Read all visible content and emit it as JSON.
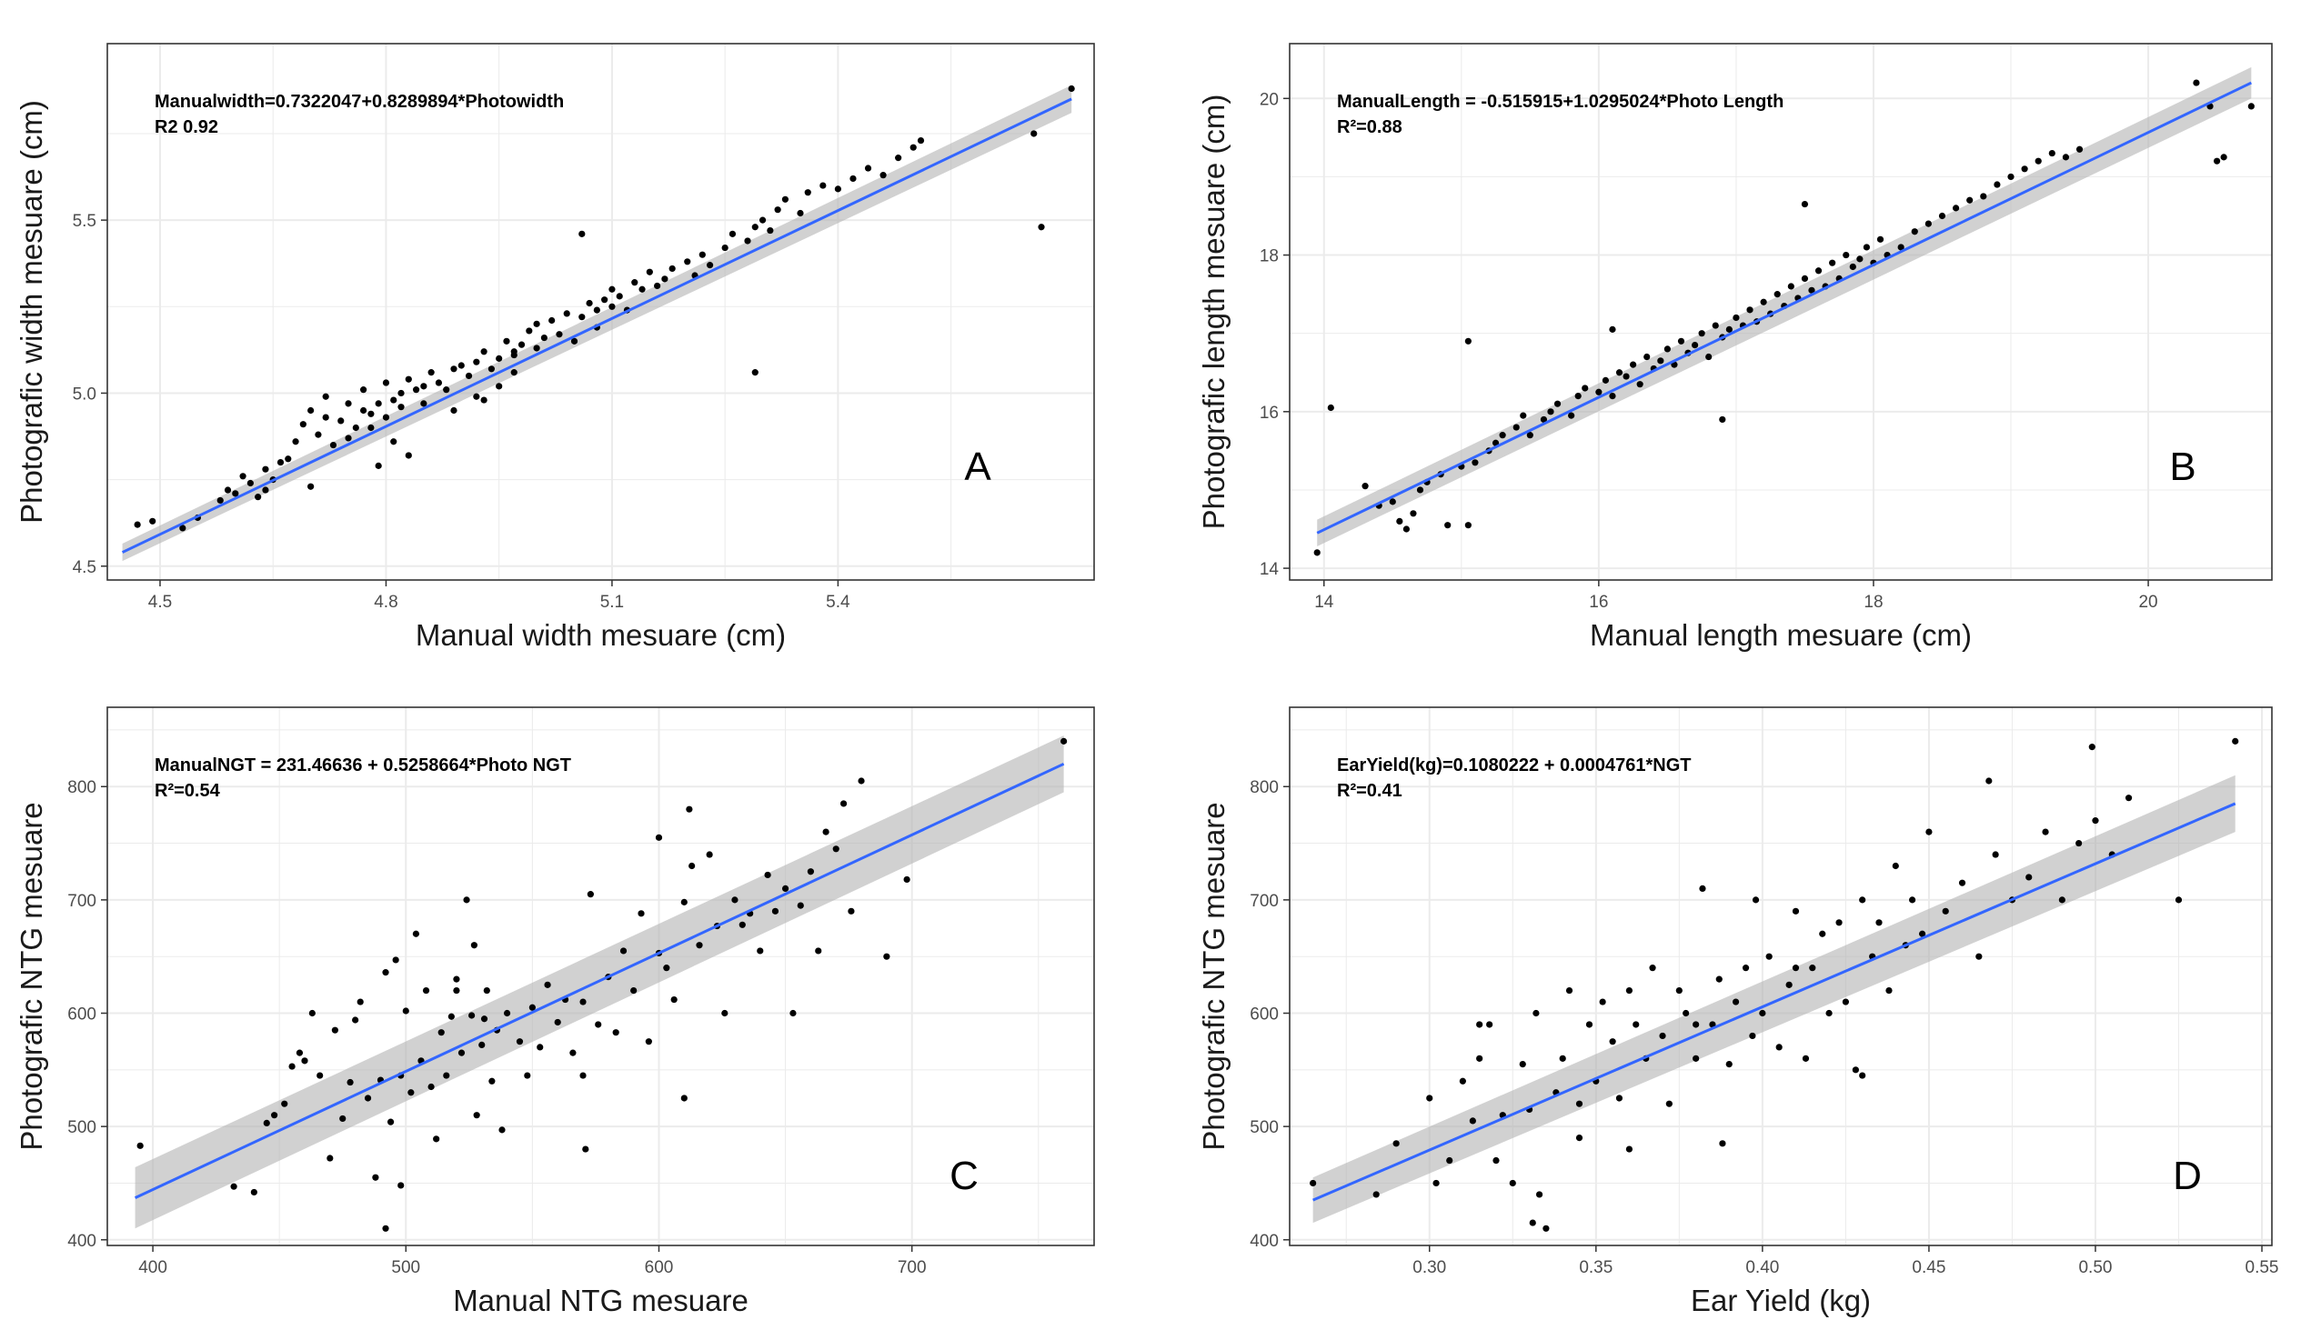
{
  "figure": {
    "background_color": "#ffffff",
    "panel_border_color": "#333333",
    "grid_color": "#ebebeb",
    "point_color": "#000000",
    "fit_line_color": "#3366ff",
    "ci_band_color": "#b3b3b3"
  },
  "chart_data": [
    {
      "type": "scatter",
      "panel_label": "A",
      "equation": "Manualwidth=0.7322047+0.8289894*Photowidth",
      "r2_text": "R2 0.92",
      "xlabel": "Manual width mesuare (cm)",
      "ylabel": "Photografic width mesuare (cm)",
      "xlim": [
        4.43,
        5.74
      ],
      "ylim": [
        4.46,
        6.01
      ],
      "xticks": [
        4.5,
        4.8,
        5.1,
        5.4
      ],
      "xtick_labels": [
        "4.5",
        "4.8",
        "5.1",
        "5.4"
      ],
      "yticks": [
        4.5,
        5.0,
        5.5
      ],
      "ytick_labels": [
        "4.5",
        "5.0",
        "5.5"
      ],
      "grid": true,
      "fit": {
        "x": [
          4.45,
          5.71
        ],
        "y": [
          4.54,
          5.85
        ],
        "ci_half_width": [
          0.025,
          0.04
        ]
      },
      "x": [
        4.47,
        4.49,
        4.53,
        4.55,
        4.58,
        4.59,
        4.6,
        4.61,
        4.62,
        4.63,
        4.64,
        4.64,
        4.65,
        4.66,
        4.67,
        4.68,
        4.69,
        4.7,
        4.71,
        4.72,
        4.72,
        4.73,
        4.74,
        4.75,
        4.75,
        4.76,
        4.77,
        4.77,
        4.78,
        4.78,
        4.79,
        4.8,
        4.8,
        4.81,
        4.82,
        4.82,
        4.83,
        4.84,
        4.85,
        4.85,
        4.86,
        4.87,
        4.88,
        4.89,
        4.89,
        4.9,
        4.91,
        4.92,
        4.92,
        4.93,
        4.94,
        4.95,
        4.95,
        4.96,
        4.97,
        4.97,
        4.98,
        4.99,
        5.0,
        5.0,
        5.01,
        5.02,
        5.03,
        5.04,
        5.05,
        5.06,
        5.07,
        5.08,
        5.08,
        5.09,
        5.1,
        5.1,
        5.11,
        5.12,
        5.13,
        5.14,
        5.15,
        5.16,
        5.17,
        5.18,
        5.2,
        5.21,
        5.22,
        5.23,
        5.25,
        5.26,
        5.28,
        5.29,
        5.3,
        5.31,
        5.32,
        5.33,
        5.35,
        5.36,
        5.38,
        5.4,
        5.42,
        5.44,
        5.46,
        5.48,
        5.5,
        5.51,
        5.66,
        5.67,
        5.71,
        4.81,
        4.79,
        4.83,
        4.7,
        5.29,
        5.06,
        4.93,
        4.97
      ],
      "y": [
        4.62,
        4.63,
        4.61,
        4.64,
        4.69,
        4.72,
        4.71,
        4.76,
        4.74,
        4.7,
        4.78,
        4.72,
        4.75,
        4.8,
        4.81,
        4.86,
        4.91,
        4.95,
        4.88,
        4.93,
        4.99,
        4.85,
        4.92,
        4.97,
        4.87,
        4.9,
        4.95,
        5.01,
        4.94,
        4.9,
        4.97,
        4.93,
        5.03,
        4.98,
        5.0,
        4.96,
        5.04,
        5.01,
        5.02,
        4.97,
        5.06,
        5.03,
        5.01,
        5.07,
        4.95,
        5.08,
        5.05,
        5.09,
        4.99,
        5.12,
        5.07,
        5.1,
        5.02,
        5.15,
        5.12,
        5.06,
        5.14,
        5.18,
        5.13,
        5.2,
        5.16,
        5.21,
        5.17,
        5.23,
        5.15,
        5.22,
        5.26,
        5.24,
        5.19,
        5.27,
        5.25,
        5.3,
        5.28,
        5.24,
        5.32,
        5.3,
        5.35,
        5.31,
        5.33,
        5.36,
        5.38,
        5.34,
        5.4,
        5.37,
        5.42,
        5.46,
        5.44,
        5.48,
        5.5,
        5.47,
        5.53,
        5.56,
        5.52,
        5.58,
        5.6,
        5.59,
        5.62,
        5.65,
        5.63,
        5.68,
        5.71,
        5.73,
        5.75,
        5.48,
        5.88,
        4.86,
        4.79,
        4.82,
        4.73,
        5.06,
        5.46,
        4.98,
        5.11
      ]
    },
    {
      "type": "scatter",
      "panel_label": "B",
      "equation": "ManualLength = -0.515915+1.0295024*Photo Length",
      "r2_text": "R²=0.88",
      "xlabel": "Manual length mesuare (cm)",
      "ylabel": "Photografic length mesuare (cm)",
      "xlim": [
        13.75,
        20.9
      ],
      "ylim": [
        13.85,
        20.7
      ],
      "xticks": [
        14,
        16,
        18,
        20
      ],
      "xtick_labels": [
        "14",
        "16",
        "18",
        "20"
      ],
      "yticks": [
        14,
        16,
        18,
        20
      ],
      "ytick_labels": [
        "14",
        "16",
        "18",
        "20"
      ],
      "grid": true,
      "fit": {
        "x": [
          13.95,
          20.75
        ],
        "y": [
          14.45,
          20.2
        ],
        "ci_half_width": [
          0.17,
          0.2
        ]
      },
      "x": [
        13.95,
        14.05,
        14.3,
        14.4,
        14.5,
        14.55,
        14.6,
        14.7,
        14.75,
        14.85,
        14.9,
        15.0,
        15.05,
        15.1,
        15.2,
        15.25,
        15.3,
        15.4,
        15.45,
        15.5,
        15.6,
        15.65,
        15.7,
        15.8,
        15.85,
        15.9,
        16.0,
        16.05,
        16.1,
        16.15,
        16.2,
        16.25,
        16.3,
        16.35,
        16.4,
        16.45,
        16.5,
        16.55,
        16.6,
        16.65,
        16.7,
        16.75,
        16.8,
        16.85,
        16.9,
        16.95,
        17.0,
        17.05,
        17.1,
        17.15,
        17.2,
        17.25,
        17.3,
        17.35,
        17.4,
        17.45,
        17.5,
        17.55,
        17.6,
        17.65,
        17.7,
        17.75,
        17.8,
        17.85,
        17.9,
        17.95,
        18.0,
        18.05,
        18.1,
        18.2,
        18.3,
        18.4,
        18.5,
        18.6,
        18.7,
        18.8,
        18.9,
        19.0,
        19.1,
        19.2,
        19.3,
        19.4,
        19.5,
        20.35,
        20.45,
        20.5,
        20.55,
        20.75,
        17.5,
        16.1,
        15.05,
        14.65,
        16.9
      ],
      "y": [
        14.2,
        16.05,
        15.05,
        14.8,
        14.85,
        14.6,
        14.5,
        15.0,
        15.1,
        15.2,
        14.55,
        15.3,
        14.55,
        15.35,
        15.5,
        15.6,
        15.7,
        15.8,
        15.95,
        15.7,
        15.9,
        16.0,
        16.1,
        15.95,
        16.2,
        16.3,
        16.25,
        16.4,
        16.2,
        16.5,
        16.45,
        16.6,
        16.35,
        16.7,
        16.55,
        16.65,
        16.8,
        16.6,
        16.9,
        16.75,
        16.85,
        17.0,
        16.7,
        17.1,
        16.95,
        17.05,
        17.2,
        17.1,
        17.3,
        17.15,
        17.4,
        17.25,
        17.5,
        17.35,
        17.6,
        17.45,
        17.7,
        17.55,
        17.8,
        17.6,
        17.9,
        17.7,
        18.0,
        17.85,
        17.95,
        18.1,
        17.9,
        18.2,
        18.0,
        18.1,
        18.3,
        18.4,
        18.5,
        18.6,
        18.7,
        18.75,
        18.9,
        19.0,
        19.1,
        19.2,
        19.3,
        19.25,
        19.35,
        20.2,
        19.9,
        19.2,
        19.25,
        19.9,
        18.65,
        17.05,
        16.9,
        14.7,
        15.9
      ]
    },
    {
      "type": "scatter",
      "panel_label": "C",
      "equation": "ManualNGT = 231.46636 + 0.5258664*Photo NGT",
      "r2_text": "R²=0.54",
      "xlabel": "Manual NTG mesuare",
      "ylabel": "Photografic NTG mesuare",
      "xlim": [
        382,
        772
      ],
      "ylim": [
        395,
        870
      ],
      "xticks": [
        400,
        500,
        600,
        700
      ],
      "xtick_labels": [
        "400",
        "500",
        "600",
        "700"
      ],
      "yticks": [
        400,
        500,
        600,
        700,
        800
      ],
      "ytick_labels": [
        "400",
        "500",
        "600",
        "700",
        "800"
      ],
      "grid": true,
      "fit": {
        "x": [
          393,
          760
        ],
        "y": [
          437,
          820
        ],
        "ci_half_width": [
          27,
          25
        ]
      },
      "x": [
        395,
        432,
        440,
        445,
        448,
        452,
        455,
        458,
        460,
        463,
        466,
        470,
        472,
        475,
        478,
        480,
        482,
        485,
        488,
        490,
        492,
        494,
        496,
        498,
        500,
        502,
        504,
        506,
        508,
        510,
        512,
        514,
        516,
        518,
        520,
        522,
        524,
        526,
        528,
        530,
        532,
        534,
        536,
        538,
        540,
        545,
        548,
        550,
        553,
        556,
        560,
        563,
        566,
        570,
        573,
        576,
        580,
        583,
        586,
        590,
        593,
        596,
        600,
        603,
        606,
        610,
        613,
        616,
        620,
        623,
        626,
        630,
        633,
        636,
        640,
        643,
        646,
        650,
        653,
        656,
        660,
        663,
        666,
        670,
        673,
        676,
        680,
        690,
        698,
        760,
        492,
        498,
        600,
        612,
        520,
        571,
        570,
        527,
        531,
        610
      ],
      "y": [
        483,
        447,
        442,
        503,
        510,
        520,
        553,
        565,
        558,
        600,
        545,
        472,
        585,
        507,
        539,
        594,
        610,
        525,
        455,
        541,
        636,
        504,
        647,
        545,
        602,
        530,
        670,
        558,
        620,
        535,
        489,
        583,
        545,
        597,
        620,
        565,
        700,
        598,
        510,
        572,
        620,
        540,
        585,
        497,
        600,
        575,
        545,
        605,
        570,
        625,
        592,
        612,
        565,
        610,
        705,
        590,
        632,
        583,
        655,
        620,
        688,
        575,
        653,
        640,
        612,
        698,
        730,
        660,
        740,
        677,
        600,
        700,
        678,
        688,
        655,
        722,
        690,
        710,
        600,
        695,
        725,
        655,
        760,
        745,
        785,
        690,
        805,
        650,
        718,
        840,
        410,
        448,
        755,
        780,
        630,
        480,
        545,
        660,
        595,
        525
      ]
    },
    {
      "type": "scatter",
      "panel_label": "D",
      "equation": "EarYield(kg)=0.1080222 + 0.0004761*NGT",
      "r2_text": "R²=0.41",
      "xlabel": "Ear Yield (kg)",
      "ylabel": "Photografic NTG mesuare",
      "xlim": [
        0.258,
        0.553
      ],
      "ylim": [
        395,
        870
      ],
      "xticks": [
        0.3,
        0.35,
        0.4,
        0.45,
        0.5,
        0.55
      ],
      "xtick_labels": [
        "0.30",
        "0.35",
        "0.40",
        "0.45",
        "0.50",
        "0.55"
      ],
      "yticks": [
        400,
        500,
        600,
        700,
        800
      ],
      "ytick_labels": [
        "400",
        "500",
        "600",
        "700",
        "800"
      ],
      "grid": true,
      "fit": {
        "x": [
          0.265,
          0.542
        ],
        "y": [
          435,
          785
        ],
        "ci_half_width": [
          20,
          25
        ]
      },
      "x": [
        0.265,
        0.284,
        0.29,
        0.3,
        0.302,
        0.306,
        0.31,
        0.313,
        0.315,
        0.318,
        0.32,
        0.322,
        0.325,
        0.328,
        0.33,
        0.332,
        0.335,
        0.338,
        0.34,
        0.342,
        0.345,
        0.348,
        0.35,
        0.352,
        0.355,
        0.357,
        0.36,
        0.362,
        0.365,
        0.367,
        0.37,
        0.372,
        0.375,
        0.377,
        0.38,
        0.382,
        0.385,
        0.387,
        0.39,
        0.392,
        0.395,
        0.397,
        0.4,
        0.402,
        0.405,
        0.408,
        0.41,
        0.413,
        0.415,
        0.418,
        0.42,
        0.423,
        0.425,
        0.428,
        0.43,
        0.433,
        0.435,
        0.438,
        0.44,
        0.443,
        0.445,
        0.448,
        0.45,
        0.455,
        0.46,
        0.465,
        0.47,
        0.475,
        0.48,
        0.485,
        0.49,
        0.495,
        0.5,
        0.505,
        0.51,
        0.525,
        0.542,
        0.333,
        0.331,
        0.388,
        0.398,
        0.468,
        0.499,
        0.43,
        0.41,
        0.36,
        0.345,
        0.38,
        0.315
      ],
      "y": [
        450,
        440,
        485,
        525,
        450,
        470,
        540,
        505,
        560,
        590,
        470,
        510,
        450,
        555,
        515,
        600,
        410,
        530,
        560,
        620,
        520,
        590,
        540,
        610,
        575,
        525,
        620,
        590,
        560,
        640,
        580,
        520,
        620,
        600,
        560,
        710,
        590,
        630,
        555,
        610,
        640,
        580,
        600,
        650,
        570,
        625,
        690,
        560,
        640,
        670,
        600,
        680,
        610,
        550,
        700,
        650,
        680,
        620,
        730,
        660,
        700,
        670,
        760,
        690,
        715,
        650,
        740,
        700,
        720,
        760,
        700,
        750,
        770,
        740,
        790,
        700,
        840,
        440,
        415,
        485,
        700,
        805,
        835,
        545,
        640,
        480,
        490,
        590,
        590
      ]
    }
  ]
}
